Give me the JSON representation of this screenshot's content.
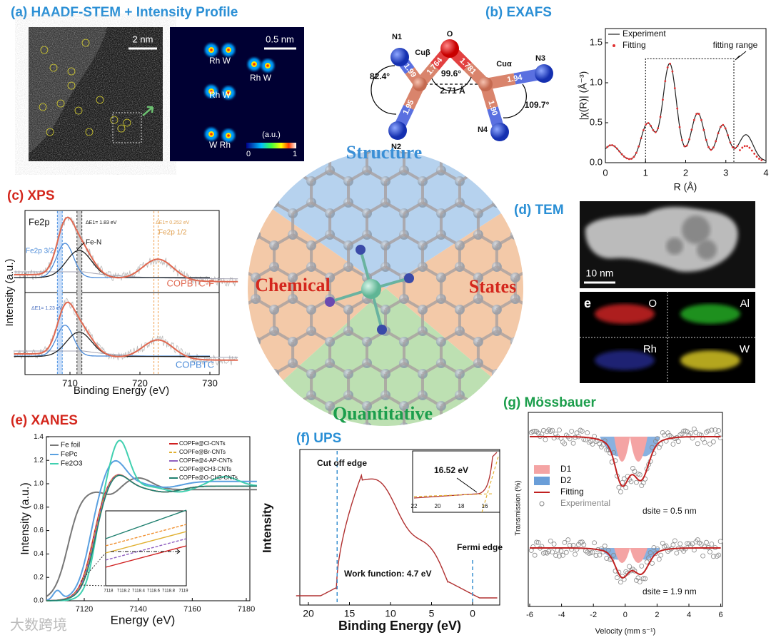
{
  "panels": {
    "a": {
      "title": "(a) HAADF-STEM + Intensity Profile",
      "scale1": "2 nm",
      "scale2": "0.5 nm",
      "pairs": [
        "Rh W",
        "Rh W",
        "Rh W",
        "W Rh"
      ],
      "colorbar_unit": "(a.u.)",
      "colorbar_min": "0",
      "colorbar_max": "1"
    },
    "b": {
      "title": "(b) EXAFS",
      "atoms": [
        "N1",
        "Cuβ",
        "O",
        "Cuα",
        "N3",
        "N2",
        "N4"
      ],
      "bonds": [
        "1.99",
        "1.764",
        "1.781",
        "1.94",
        "1.95",
        "1.90"
      ],
      "angles": [
        "82.4°",
        "99.6°",
        "109.7°"
      ],
      "distance": "2.71 Å",
      "plot": {
        "legend": [
          "Experiment",
          "Fitting"
        ],
        "annotation": "fitting range",
        "ylabel": "|χ(R)| (Å⁻³)",
        "xlabel": "R (Å)",
        "yticks": [
          "0.0",
          "0.5",
          "1.0",
          "1.5"
        ],
        "xticks": [
          "0",
          "1",
          "2",
          "3",
          "4"
        ]
      }
    },
    "center": {
      "labels": [
        "Structure",
        "Chemical",
        "States",
        "Quantitative"
      ]
    },
    "c": {
      "title": "(c) XPS",
      "label": "Fe2p",
      "peaks": [
        "Fe2p 3/2",
        "Fe-N",
        "Fe2p 1/2"
      ],
      "deltas": [
        "ΔE1= 1.83 eV",
        "ΔE1= 0.252 eV",
        "ΔE1= 1.23 eV"
      ],
      "samples": [
        "COPBTC-F",
        "COPBTC"
      ],
      "xlabel": "Binding Energy (eV)",
      "ylabel": "Intensity (a.u.)",
      "xticks": [
        "710",
        "720",
        "730"
      ]
    },
    "d": {
      "title": "(d) TEM",
      "scale": "10 nm",
      "e_label": "e",
      "elements": [
        "O",
        "Al",
        "Rh",
        "W"
      ]
    },
    "e": {
      "title": "(e) XANES",
      "legend_left": [
        "Fe foil",
        "FePc",
        "Fe2O3"
      ],
      "legend_right": [
        "COPFe@Cl-CNTs",
        "COPFe@Br-CNTs",
        "COPFe@4-AP-CNTs",
        "COPFe@CH3-CNTs",
        "COPFe@O-CH3-CNTs"
      ],
      "ylabel": "Intensity (a.u.)",
      "xlabel": "Energy (eV)",
      "yticks": [
        "0.0",
        "0.2",
        "0.4",
        "0.6",
        "0.8",
        "1.0",
        "1.2",
        "1.4"
      ],
      "xticks": [
        "7120",
        "7140",
        "7160",
        "7180"
      ],
      "inset_xticks": [
        "7118",
        "7118.2",
        "7118.4",
        "7118.6",
        "7118.8",
        "7119"
      ]
    },
    "f": {
      "title": "(f) UPS",
      "annotations": [
        "Cut off edge",
        "Fermi edge",
        "Work function: 4.7 eV",
        "16.52 eV"
      ],
      "ylabel": "Intensity",
      "xlabel": "Binding Energy (eV)",
      "xticks": [
        "20",
        "15",
        "10",
        "5",
        "0"
      ],
      "inset_xticks": [
        "22",
        "20",
        "18",
        "16"
      ]
    },
    "g": {
      "title": "(g) Mössbauer",
      "legend": [
        "D1",
        "D2",
        "Fitting",
        "Experimental"
      ],
      "sizes": [
        "dsite = 0.5 nm",
        "dsite = 1.9 nm"
      ],
      "ylabel": "Transmission (%)",
      "xlabel": "Velocity (mm s⁻¹)",
      "xticks": [
        "-6",
        "-4",
        "-2",
        "0",
        "2",
        "4",
        "6"
      ]
    }
  },
  "watermark": "大数跨境"
}
